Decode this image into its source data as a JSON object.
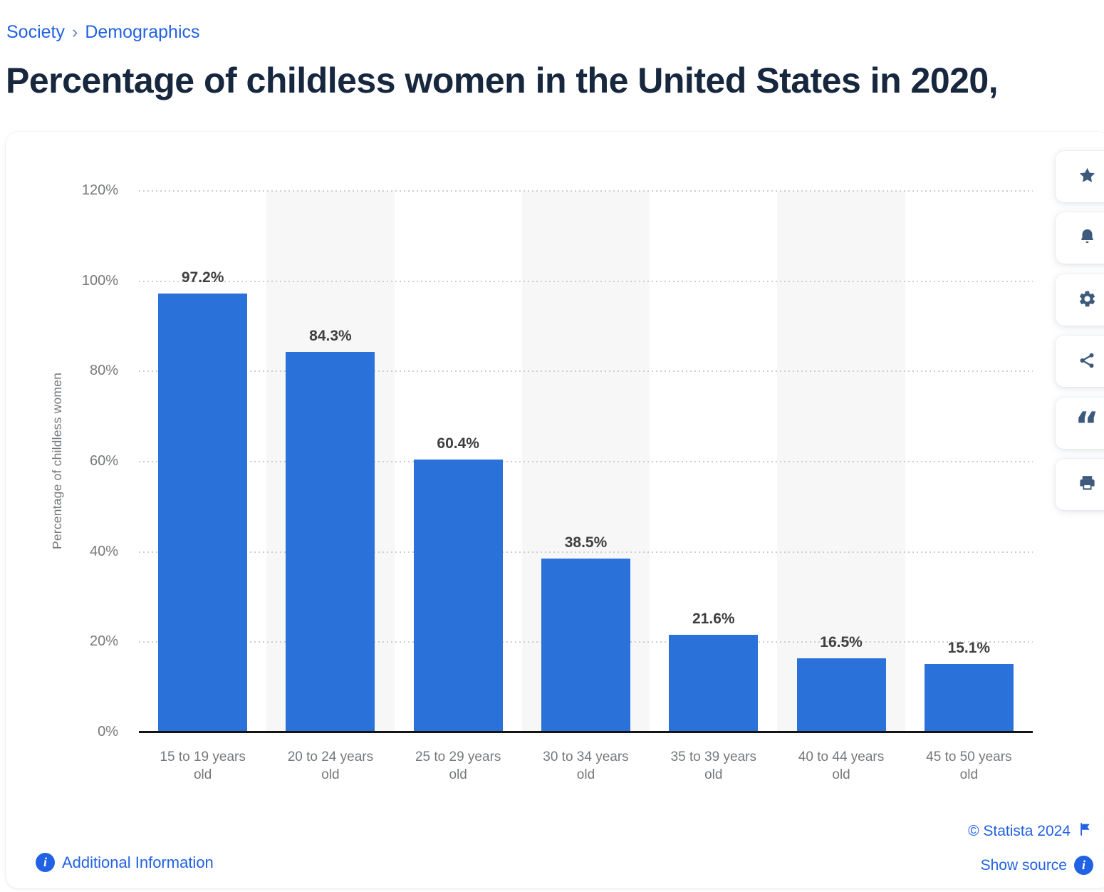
{
  "breadcrumb": {
    "separator": "›",
    "items": [
      {
        "label": "Society"
      },
      {
        "label": "Demographics"
      }
    ]
  },
  "page_title": "Percentage of childless women in the United States in 2020,",
  "chart_data": {
    "type": "bar",
    "title": "Percentage of childless women in the United States in 2020,",
    "categories": [
      "15 to 19 years\nold",
      "20 to 24 years\nold",
      "25 to 29 years\nold",
      "30 to 34 years\nold",
      "35 to 39 years\nold",
      "40 to 44 years\nold",
      "45 to 50 years\nold"
    ],
    "values": [
      97.2,
      84.3,
      60.4,
      38.5,
      21.6,
      16.5,
      15.1
    ],
    "value_labels": [
      "97.2%",
      "84.3%",
      "60.4%",
      "38.5%",
      "21.6%",
      "16.5%",
      "15.1%"
    ],
    "xlabel": "",
    "ylabel": "Percentage of childless women",
    "ylim": [
      0,
      120
    ],
    "yticks": [
      {
        "value": 0,
        "label": "0%"
      },
      {
        "value": 20,
        "label": "20%"
      },
      {
        "value": 40,
        "label": "40%"
      },
      {
        "value": 60,
        "label": "60%"
      },
      {
        "value": 80,
        "label": "80%"
      },
      {
        "value": 100,
        "label": "100%"
      },
      {
        "value": 120,
        "label": "120%"
      }
    ],
    "grid": "horizontal-dotted",
    "legend": null,
    "stripe_columns": [
      1,
      3,
      5
    ],
    "bar_color": "#2a72d9",
    "stripe_color": "#f7f7f8"
  },
  "toolbar": {
    "buttons": [
      {
        "name": "favorite",
        "icon": "star-icon"
      },
      {
        "name": "alerts",
        "icon": "bell-icon"
      },
      {
        "name": "settings",
        "icon": "gear-icon"
      },
      {
        "name": "share",
        "icon": "share-icon"
      },
      {
        "name": "cite",
        "icon": "quote-icon"
      },
      {
        "name": "print",
        "icon": "printer-icon"
      }
    ]
  },
  "footer": {
    "copyright": "© Statista 2024",
    "show_source": "Show source",
    "additional_information": "Additional Information"
  },
  "colors": {
    "bar_blue": "#2a72d9",
    "link_blue": "#2161e4",
    "title_navy": "#16273e",
    "toolbar_icon_navy": "#3d5a7c",
    "axis_text_gray": "#75787b",
    "gridline_gray": "#cdcdcd",
    "stripe_gray": "#f7f7f8"
  }
}
